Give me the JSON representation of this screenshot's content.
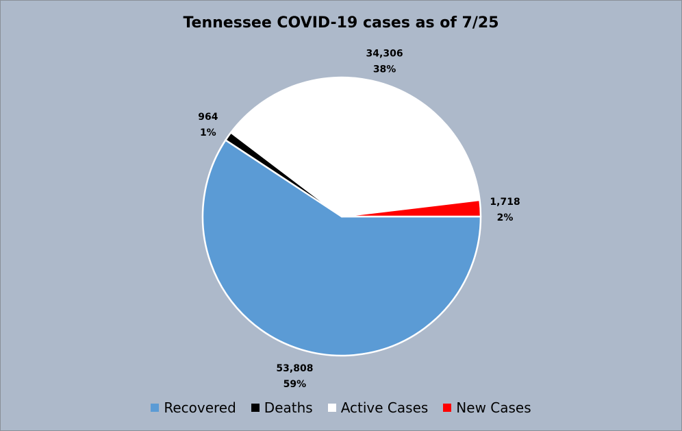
{
  "chart_data": {
    "type": "pie",
    "title": "Tennessee COVID-19 cases as of 7/25",
    "categories": [
      "Recovered",
      "Deaths",
      "Active Cases",
      "New Cases"
    ],
    "values": [
      53808,
      964,
      34306,
      1718
    ],
    "value_labels": [
      "53,808",
      "964",
      "34,306",
      "1,718"
    ],
    "percent_labels": [
      "59%",
      "1%",
      "38%",
      "2%"
    ],
    "colors": [
      "#5b9bd5",
      "#000000",
      "#ffffff",
      "#ff0000"
    ],
    "legend_position": "bottom",
    "start_angle_deg": 0,
    "direction": "clockwise"
  }
}
